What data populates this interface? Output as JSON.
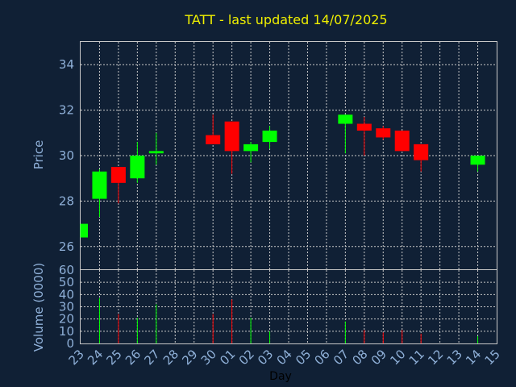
{
  "chart_data": [
    {
      "type": "candlestick",
      "title": "TATT - last updated 14/07/2025",
      "ylabel": "Price",
      "ylim": [
        25,
        35
      ],
      "yticks": [
        26,
        28,
        30,
        32,
        34
      ],
      "grid": true,
      "colors": {
        "up": "#00ff00",
        "down": "#ff0000",
        "title": "#f0f000",
        "text": "#8fb0d8",
        "background": "#102035"
      },
      "x_tick_labels": [
        "23",
        "24",
        "25",
        "26",
        "27",
        "28",
        "29",
        "30",
        "01",
        "02",
        "03",
        "04",
        "05",
        "06",
        "07",
        "08",
        "09",
        "10",
        "11",
        "12",
        "13",
        "14",
        "15"
      ],
      "candles": [
        {
          "day": "23",
          "open": 26.4,
          "close": 27.0,
          "high": 27.0,
          "low": 26.4
        },
        {
          "day": "24",
          "open": 28.1,
          "close": 29.3,
          "high": 29.4,
          "low": 27.3
        },
        {
          "day": "25",
          "open": 29.5,
          "close": 28.8,
          "high": 29.5,
          "low": 27.9
        },
        {
          "day": "26",
          "open": 29.0,
          "close": 30.0,
          "high": 30.6,
          "low": 28.8
        },
        {
          "day": "27",
          "open": 30.1,
          "close": 30.2,
          "high": 31.0,
          "low": 29.6
        },
        {
          "day": "30",
          "open": 30.9,
          "close": 30.5,
          "high": 31.8,
          "low": 30.5
        },
        {
          "day": "01",
          "open": 31.5,
          "close": 30.2,
          "high": 31.5,
          "low": 29.2
        },
        {
          "day": "02",
          "open": 30.2,
          "close": 30.5,
          "high": 30.6,
          "low": 29.7
        },
        {
          "day": "03",
          "open": 30.6,
          "close": 31.1,
          "high": 31.3,
          "low": 30.3
        },
        {
          "day": "07",
          "open": 31.4,
          "close": 31.8,
          "high": 31.8,
          "low": 30.1
        },
        {
          "day": "08",
          "open": 31.4,
          "close": 31.1,
          "high": 31.7,
          "low": 30.0
        },
        {
          "day": "09",
          "open": 31.2,
          "close": 30.8,
          "high": 31.3,
          "low": 30.7
        },
        {
          "day": "10",
          "open": 31.1,
          "close": 30.2,
          "high": 31.1,
          "low": 30.2
        },
        {
          "day": "11",
          "open": 30.5,
          "close": 29.8,
          "high": 30.5,
          "low": 29.3
        },
        {
          "day": "14",
          "open": 29.6,
          "close": 30.0,
          "high": 30.0,
          "low": 29.3
        }
      ]
    },
    {
      "type": "bar",
      "ylabel": "Volume (0000)",
      "xlabel": "Day",
      "ylim": [
        0,
        60
      ],
      "yticks": [
        0,
        10,
        20,
        30,
        40,
        50,
        60
      ],
      "grid": true,
      "categories": [
        "23",
        "24",
        "25",
        "26",
        "27",
        "30",
        "01",
        "02",
        "03",
        "07",
        "08",
        "09",
        "10",
        "11",
        "14"
      ],
      "values": [
        0,
        37,
        24,
        21,
        32,
        24,
        36,
        21,
        10,
        18,
        11,
        9,
        11,
        8,
        6
      ],
      "direction": [
        "up",
        "up",
        "down",
        "up",
        "up",
        "down",
        "down",
        "up",
        "up",
        "up",
        "down",
        "down",
        "down",
        "down",
        "up"
      ]
    }
  ]
}
